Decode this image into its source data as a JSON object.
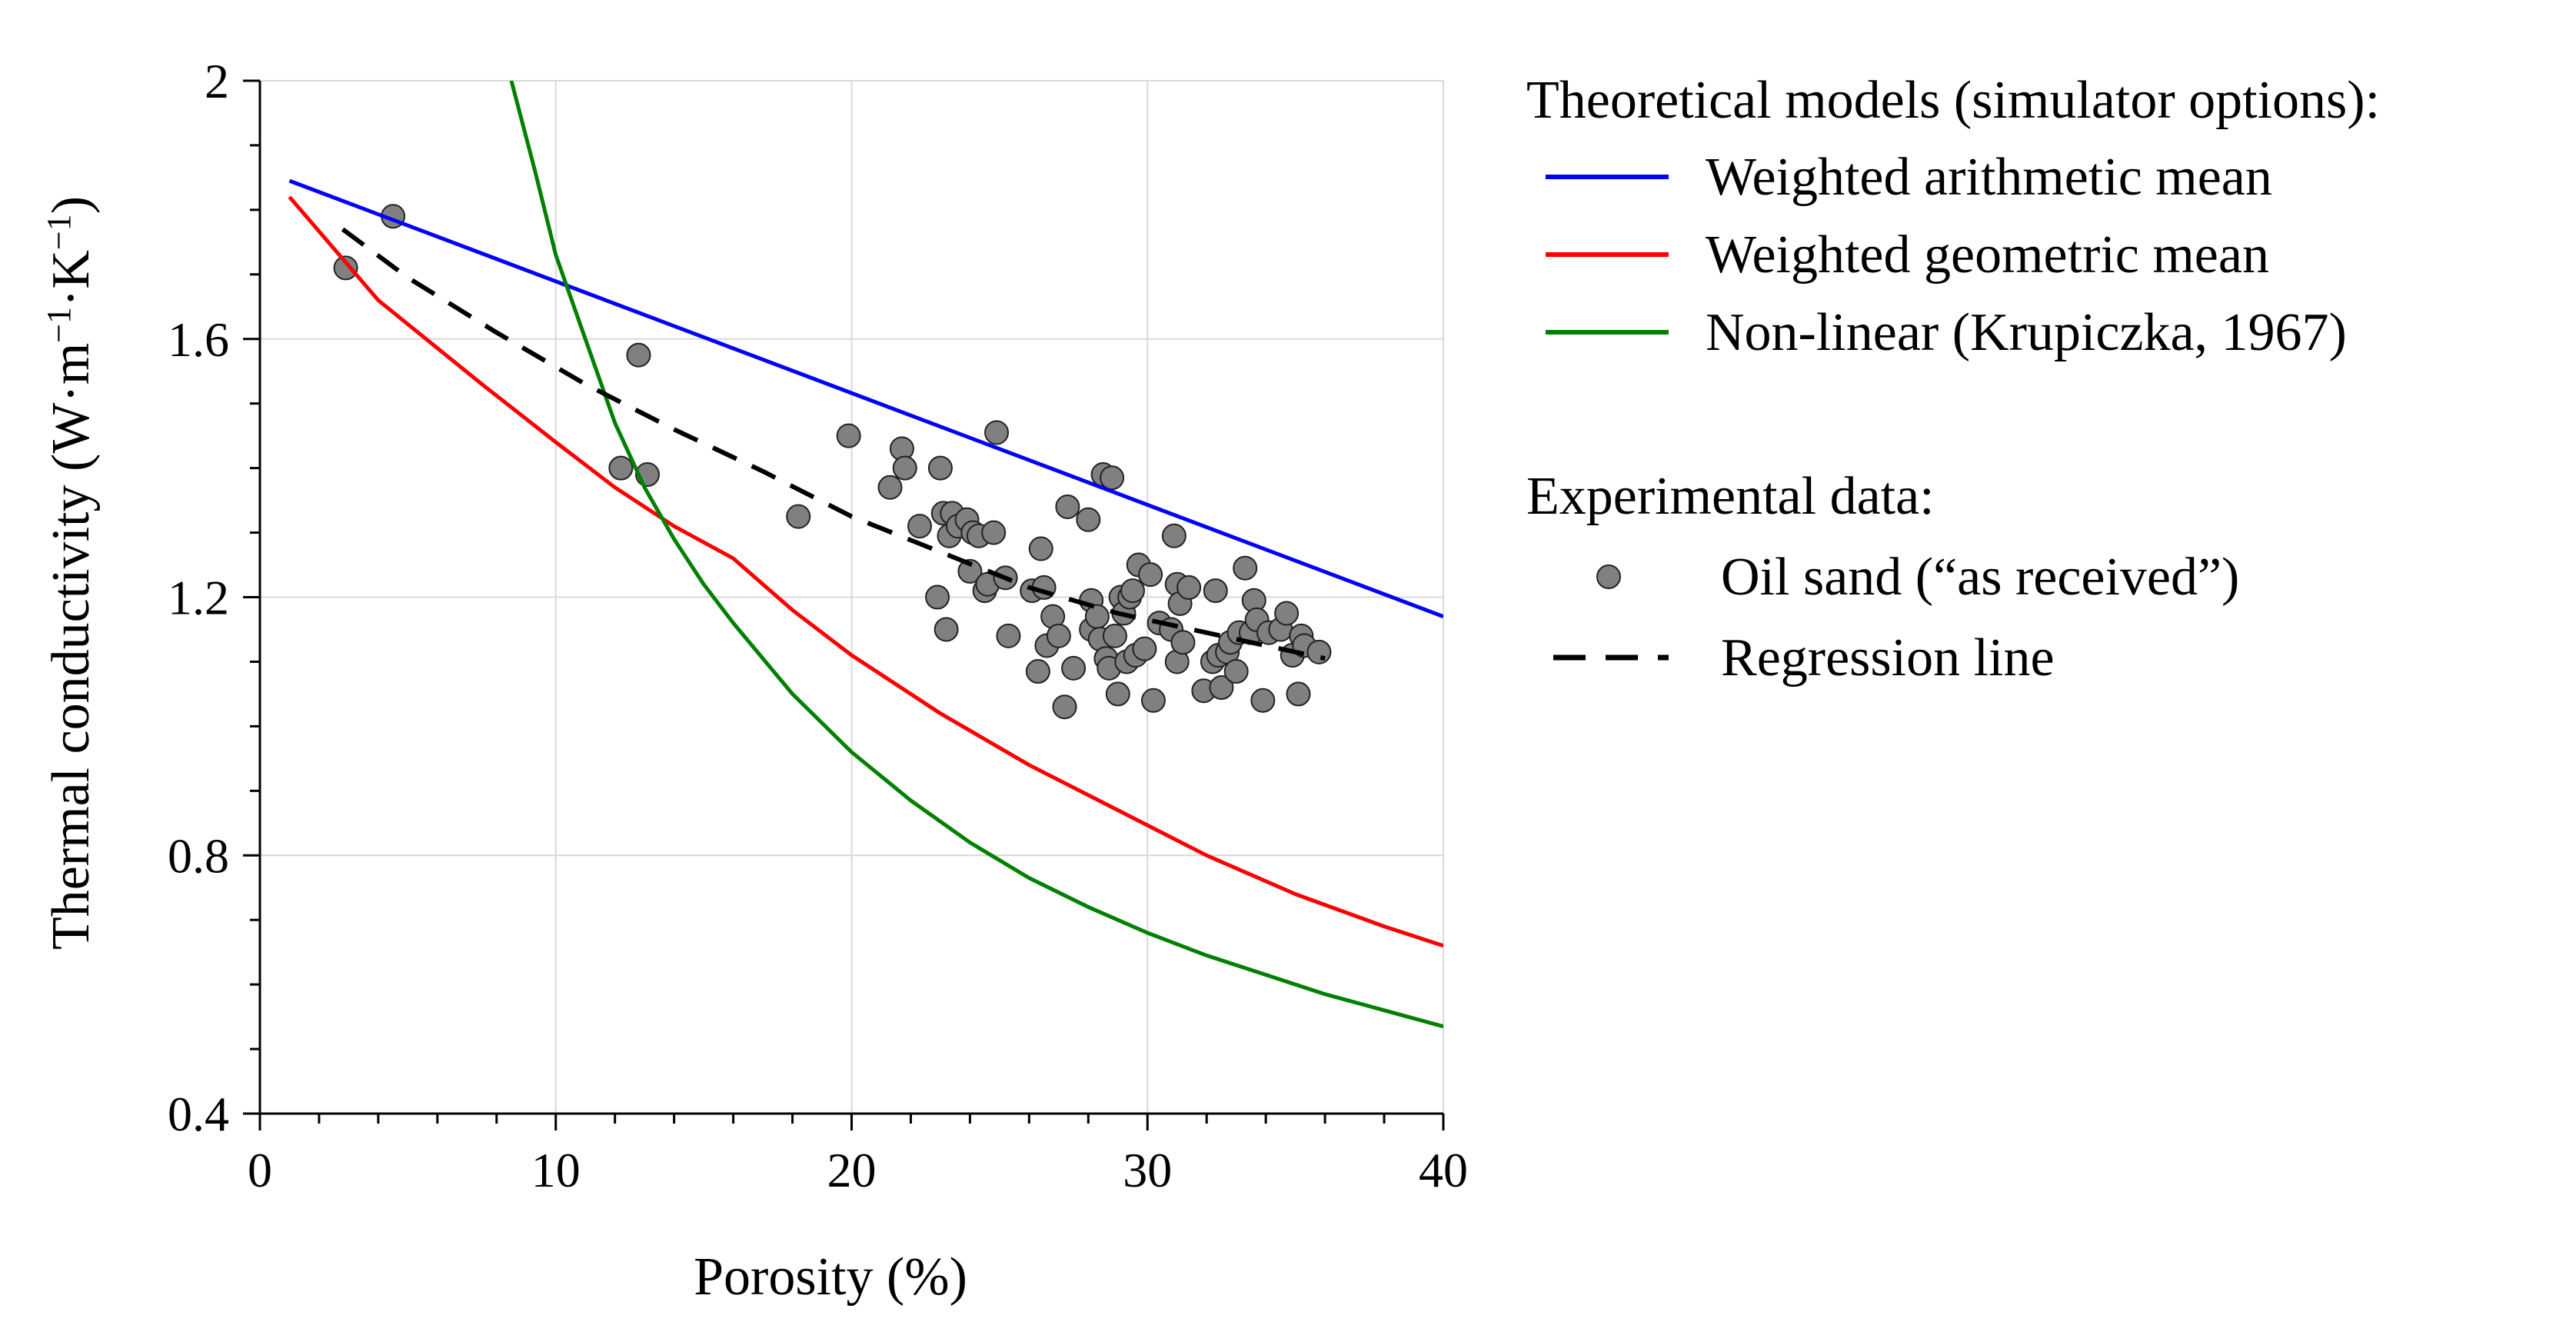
{
  "chart_data": {
    "type": "line",
    "title": "",
    "xlabel": "Porosity (%)",
    "ylabel_main": "Thermal conductivity  (W·m",
    "ylabel_sup1": "−1",
    "ylabel_mid": "·K",
    "ylabel_sup2": "−1",
    "ylabel_end": ")",
    "xlim": [
      0,
      40
    ],
    "ylim": [
      0.4,
      2.0
    ],
    "x_ticks": [
      0,
      10,
      20,
      30,
      40
    ],
    "x_tick_labels": [
      "0",
      "10",
      "20",
      "30",
      "40"
    ],
    "y_ticks": [
      0.4,
      0.8,
      1.2,
      1.6,
      2.0
    ],
    "y_tick_labels": [
      "0.4",
      "0.8",
      "1.2",
      "1.6",
      "2"
    ],
    "grid": true,
    "legend": {
      "placement": "right",
      "theory_heading": "Theoretical models (simulator options):",
      "experimental_heading": "Experimental data:"
    },
    "series": [
      {
        "name": "Weighted arithmetic mean",
        "kind": "line",
        "color": "#0000ff",
        "x": [
          1,
          40
        ],
        "y": [
          1.845,
          1.17
        ]
      },
      {
        "name": "Weighted geometric mean",
        "kind": "line",
        "color": "#ff0000",
        "x": [
          1,
          4,
          7.5,
          10,
          12,
          14,
          16,
          18,
          20,
          23,
          26,
          29,
          32,
          35,
          38,
          40
        ],
        "y": [
          1.82,
          1.66,
          1.53,
          1.44,
          1.37,
          1.31,
          1.26,
          1.18,
          1.11,
          1.02,
          0.94,
          0.87,
          0.8,
          0.74,
          0.69,
          0.66
        ]
      },
      {
        "name": "Non-linear (Krupiczka, 1967)",
        "kind": "line",
        "color": "#008000",
        "x": [
          8.5,
          9.3,
          10,
          11,
          12,
          13,
          14,
          15,
          16,
          18,
          20,
          22,
          24,
          26,
          28,
          30,
          32,
          34,
          36,
          38,
          40
        ],
        "y": [
          2.0,
          1.86,
          1.73,
          1.6,
          1.47,
          1.37,
          1.29,
          1.22,
          1.16,
          1.05,
          0.96,
          0.885,
          0.82,
          0.765,
          0.72,
          0.68,
          0.645,
          0.615,
          0.585,
          0.56,
          0.535
        ]
      },
      {
        "name": "Regression line",
        "kind": "dashed",
        "color": "#000000",
        "x": [
          2.8,
          5,
          8,
          11,
          14,
          17,
          20,
          23,
          26,
          29,
          32,
          34,
          36
        ],
        "y": [
          1.77,
          1.695,
          1.61,
          1.53,
          1.46,
          1.395,
          1.325,
          1.27,
          1.215,
          1.175,
          1.145,
          1.125,
          1.105
        ]
      },
      {
        "name": "Oil sand (“as received”)",
        "kind": "scatter",
        "color": "#808080",
        "x": [
          2.9,
          4.5,
          12.2,
          12.8,
          13.1,
          18.2,
          19.9,
          21.3,
          21.7,
          21.8,
          22.3,
          22.9,
          23.0,
          23.1,
          23.2,
          23.3,
          23.4,
          23.6,
          23.9,
          24.0,
          24.1,
          24.3,
          24.5,
          24.6,
          24.8,
          24.9,
          25.2,
          25.3,
          26.1,
          26.3,
          26.4,
          26.5,
          26.6,
          26.8,
          27.0,
          27.2,
          27.3,
          27.5,
          28.0,
          28.1,
          28.1,
          28.3,
          28.4,
          28.5,
          28.6,
          28.7,
          28.8,
          28.9,
          29.0,
          29.1,
          29.2,
          29.3,
          29.4,
          29.5,
          29.6,
          29.7,
          29.9,
          30.1,
          30.2,
          30.4,
          30.8,
          30.9,
          31.0,
          31.0,
          31.1,
          31.2,
          31.4,
          31.9,
          32.2,
          32.3,
          32.4,
          32.5,
          32.7,
          32.8,
          33.0,
          33.1,
          33.3,
          33.5,
          33.6,
          33.7,
          33.9,
          34.1,
          34.5,
          34.7,
          34.9,
          35.1,
          35.2,
          35.3,
          35.8
        ],
        "y": [
          1.71,
          1.79,
          1.4,
          1.575,
          1.39,
          1.325,
          1.45,
          1.37,
          1.43,
          1.4,
          1.31,
          1.2,
          1.4,
          1.33,
          1.15,
          1.295,
          1.33,
          1.31,
          1.32,
          1.24,
          1.3,
          1.295,
          1.21,
          1.22,
          1.3,
          1.455,
          1.23,
          1.14,
          1.21,
          1.085,
          1.275,
          1.215,
          1.125,
          1.17,
          1.14,
          1.03,
          1.34,
          1.09,
          1.32,
          1.195,
          1.15,
          1.17,
          1.135,
          1.39,
          1.105,
          1.09,
          1.385,
          1.14,
          1.05,
          1.2,
          1.175,
          1.1,
          1.2,
          1.21,
          1.11,
          1.25,
          1.12,
          1.235,
          1.04,
          1.16,
          1.15,
          1.295,
          1.1,
          1.22,
          1.19,
          1.13,
          1.215,
          1.055,
          1.1,
          1.21,
          1.11,
          1.06,
          1.115,
          1.13,
          1.085,
          1.145,
          1.245,
          1.145,
          1.195,
          1.165,
          1.04,
          1.145,
          1.15,
          1.175,
          1.11,
          1.05,
          1.14,
          1.125,
          1.115
        ]
      }
    ]
  }
}
